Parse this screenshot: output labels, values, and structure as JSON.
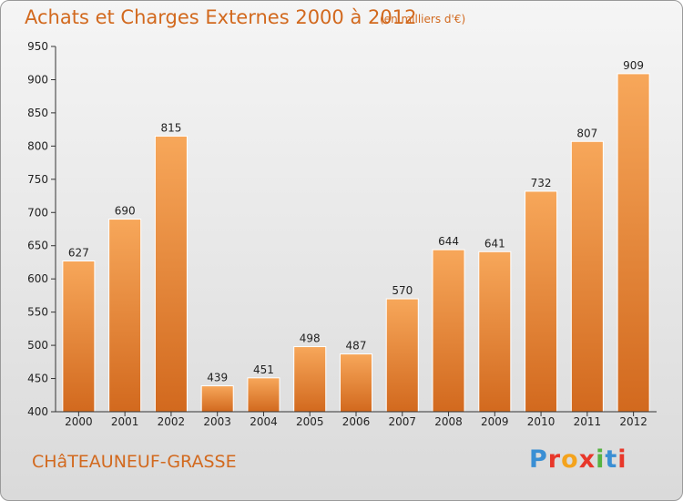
{
  "header": {
    "title": "Achats et Charges Externes 2000 à 2012",
    "unit": "(en milliers d'€)"
  },
  "footer": {
    "city": "CHâTEAUNEUF-GRASSE",
    "logo": "Proxiti",
    "logo_colors": [
      "#3a8fd4",
      "#e8372a",
      "#f4a31c",
      "#e8372a",
      "#56b341",
      "#3a8fd4",
      "#e8372a"
    ]
  },
  "colors": {
    "bar_light": "#f7a75a",
    "bar_dark": "#d2691e",
    "text_accent": "#d2691e"
  },
  "chart_data": {
    "type": "bar",
    "categories": [
      "2000",
      "2001",
      "2002",
      "2003",
      "2004",
      "2005",
      "2006",
      "2007",
      "2008",
      "2009",
      "2010",
      "2011",
      "2012"
    ],
    "values": [
      627,
      690,
      815,
      439,
      451,
      498,
      487,
      570,
      644,
      641,
      732,
      807,
      909
    ],
    "ylim": [
      400,
      950
    ],
    "yticks": [
      400,
      450,
      500,
      550,
      600,
      650,
      700,
      750,
      800,
      850,
      900,
      950
    ],
    "grid": false
  }
}
